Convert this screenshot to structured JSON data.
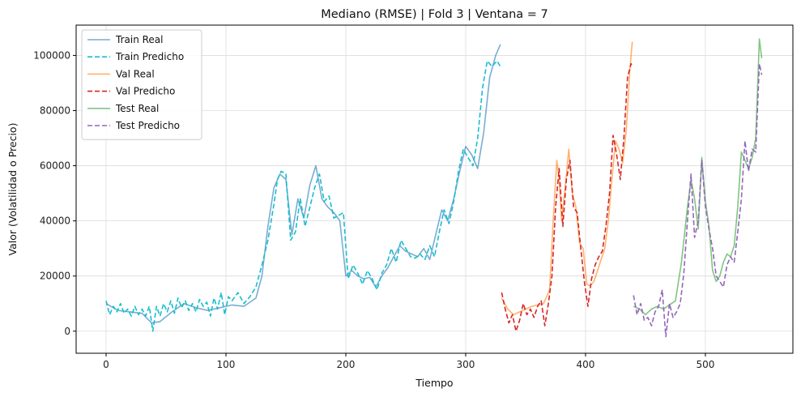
{
  "chart_data": {
    "type": "line",
    "title": "Mediano (RMSE) | Fold 3 | Ventana = 7",
    "xlabel": "Tiempo",
    "ylabel": "Valor (Volatilidad o Precio)",
    "xlim": [
      -25,
      573
    ],
    "ylim": [
      -8000,
      111000
    ],
    "xticks": [
      0,
      100,
      200,
      300,
      400,
      500
    ],
    "yticks": [
      0,
      20000,
      40000,
      60000,
      80000,
      100000
    ],
    "grid": true,
    "legend_position": "top-left",
    "series": [
      {
        "name": "Train Real",
        "color": "#1f77b4",
        "dash": "solid",
        "opacity": 0.6,
        "x": [
          0,
          10,
          20,
          30,
          38,
          45,
          55,
          65,
          75,
          85,
          95,
          105,
          115,
          125,
          130,
          135,
          140,
          145,
          150,
          155,
          160,
          165,
          170,
          175,
          180,
          185,
          190,
          195,
          200,
          205,
          210,
          215,
          220,
          225,
          230,
          235,
          240,
          245,
          250,
          255,
          260,
          265,
          270,
          275,
          280,
          285,
          290,
          295,
          300,
          305,
          310,
          315,
          320,
          325,
          329
        ],
        "y": [
          10000,
          7500,
          7000,
          6500,
          3000,
          3500,
          7000,
          10000,
          8500,
          7500,
          8500,
          9500,
          9000,
          12000,
          20000,
          38000,
          52000,
          57000,
          55000,
          35000,
          48000,
          41000,
          53000,
          60000,
          48000,
          45000,
          43000,
          40000,
          20000,
          22000,
          20000,
          19000,
          19500,
          16000,
          20000,
          23000,
          27000,
          31000,
          29000,
          28000,
          27000,
          30000,
          26000,
          35000,
          44000,
          40000,
          48000,
          58000,
          67000,
          64000,
          59000,
          72000,
          92000,
          100000,
          104000
        ]
      },
      {
        "name": "Train Predicho",
        "color": "#17becf",
        "dash": "dashed",
        "opacity": 1,
        "x": [
          0,
          3,
          6,
          9,
          12,
          15,
          18,
          21,
          24,
          27,
          30,
          33,
          36,
          39,
          42,
          45,
          48,
          51,
          54,
          57,
          60,
          63,
          66,
          69,
          72,
          75,
          78,
          81,
          84,
          87,
          90,
          93,
          96,
          99,
          102,
          105,
          110,
          115,
          120,
          125,
          130,
          135,
          140,
          143,
          146,
          150,
          154,
          158,
          162,
          166,
          170,
          174,
          178,
          182,
          186,
          190,
          194,
          198,
          202,
          206,
          210,
          214,
          218,
          222,
          226,
          230,
          234,
          238,
          242,
          246,
          250,
          254,
          258,
          262,
          266,
          270,
          274,
          278,
          282,
          286,
          290,
          294,
          298,
          302,
          306,
          310,
          314,
          318,
          322,
          326,
          329
        ],
        "y": [
          11000,
          6000,
          9000,
          7000,
          10000,
          6500,
          8000,
          5500,
          9000,
          6000,
          8000,
          5500,
          9000,
          0,
          9000,
          5500,
          10000,
          7000,
          11000,
          6500,
          12000,
          8500,
          11000,
          7500,
          10000,
          7000,
          11500,
          9000,
          10500,
          5500,
          12000,
          8000,
          14000,
          6000,
          12500,
          11000,
          14000,
          10000,
          12500,
          16000,
          24000,
          33000,
          46000,
          55000,
          58000,
          57000,
          33000,
          36000,
          48000,
          38000,
          45000,
          52000,
          57000,
          47000,
          49000,
          41000,
          42000,
          43000,
          19000,
          24000,
          21000,
          17000,
          22000,
          19000,
          15000,
          21000,
          24000,
          30000,
          25000,
          33000,
          30000,
          27000,
          26500,
          28000,
          26000,
          31000,
          27000,
          36000,
          44000,
          39000,
          47000,
          58000,
          66000,
          63000,
          60000,
          70000,
          88000,
          98000,
          96000,
          98000,
          96000
        ]
      },
      {
        "name": "Val Real",
        "color": "#ff7f0e",
        "dash": "solid",
        "opacity": 0.6,
        "x": [
          330,
          335,
          340,
          345,
          350,
          355,
          360,
          365,
          370,
          373,
          376,
          378,
          380,
          383,
          386,
          389,
          392,
          395,
          398,
          401,
          404,
          407,
          410,
          413,
          416,
          419,
          422,
          425,
          428,
          431,
          434,
          437,
          439
        ],
        "y": [
          12000,
          8000,
          6000,
          7000,
          8000,
          9000,
          9500,
          10000,
          15000,
          40000,
          62000,
          55000,
          40000,
          52000,
          66000,
          50000,
          45000,
          32000,
          30000,
          17000,
          16500,
          18000,
          22000,
          26000,
          30000,
          40000,
          55000,
          69000,
          66000,
          61000,
          73000,
          95000,
          105000
        ]
      },
      {
        "name": "Val Predicho",
        "color": "#d62728",
        "dash": "dashed",
        "opacity": 1,
        "x": [
          330,
          333,
          336,
          339,
          342,
          345,
          348,
          351,
          354,
          357,
          360,
          363,
          366,
          369,
          372,
          375,
          378,
          381,
          384,
          387,
          390,
          393,
          396,
          399,
          402,
          405,
          408,
          411,
          414,
          417,
          420,
          423,
          426,
          429,
          432,
          435,
          438,
          439
        ],
        "y": [
          14000,
          8000,
          3000,
          6000,
          0,
          4000,
          10000,
          6000,
          8000,
          5000,
          9000,
          11000,
          2000,
          10000,
          20000,
          45000,
          59000,
          38000,
          55000,
          62000,
          45000,
          43000,
          30000,
          18000,
          9000,
          19000,
          24000,
          27000,
          29000,
          38000,
          50000,
          71000,
          64000,
          55000,
          70000,
          92000,
          97000,
          96000
        ]
      },
      {
        "name": "Test Real",
        "color": "#2ca02c",
        "dash": "solid",
        "opacity": 0.6,
        "x": [
          440,
          445,
          450,
          455,
          460,
          465,
          470,
          475,
          480,
          485,
          488,
          491,
          494,
          497,
          500,
          503,
          506,
          509,
          512,
          515,
          518,
          521,
          524,
          527,
          530,
          533,
          536,
          539,
          542,
          545,
          547
        ],
        "y": [
          9000,
          8000,
          6000,
          8000,
          9000,
          8000,
          9500,
          11000,
          25000,
          45000,
          55000,
          48000,
          37000,
          63000,
          47000,
          38000,
          22000,
          18000,
          20000,
          25000,
          28000,
          27000,
          31000,
          45000,
          65000,
          62000,
          59000,
          63000,
          70000,
          106000,
          99000
        ]
      },
      {
        "name": "Test Predicho",
        "color": "#9467bd",
        "dash": "dashed",
        "opacity": 1,
        "x": [
          440,
          443,
          446,
          449,
          452,
          455,
          458,
          461,
          464,
          467,
          470,
          473,
          476,
          479,
          482,
          485,
          488,
          491,
          494,
          497,
          500,
          503,
          506,
          509,
          512,
          515,
          518,
          521,
          524,
          527,
          530,
          533,
          536,
          539,
          542,
          545,
          547
        ],
        "y": [
          13000,
          6000,
          10000,
          4000,
          5000,
          2000,
          7000,
          9000,
          15000,
          -2000,
          10000,
          5000,
          7000,
          10000,
          21000,
          40000,
          57000,
          34000,
          40000,
          62000,
          45000,
          37000,
          30000,
          20000,
          18000,
          16000,
          24000,
          27000,
          25000,
          36000,
          48000,
          69000,
          58000,
          66000,
          65000,
          97000,
          93000
        ]
      }
    ]
  }
}
